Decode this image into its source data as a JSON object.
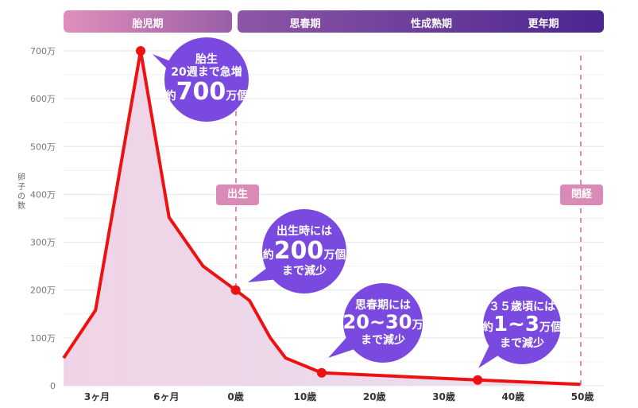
{
  "chart_data": {
    "type": "area",
    "title": "",
    "ylabel": "卵子の数",
    "ylim": [
      0,
      700
    ],
    "yunit": "万",
    "yticks": [
      {
        "v": 0,
        "label": "0"
      },
      {
        "v": 100,
        "label": "100万"
      },
      {
        "v": 200,
        "label": "200万"
      },
      {
        "v": 300,
        "label": "300万"
      },
      {
        "v": 400,
        "label": "400万"
      },
      {
        "v": 500,
        "label": "500万"
      },
      {
        "v": 600,
        "label": "600万"
      },
      {
        "v": 700,
        "label": "700万"
      }
    ],
    "xticks": [
      {
        "t": 0,
        "label": "3ヶ月"
      },
      {
        "t": 1,
        "label": "6ヶ月"
      },
      {
        "t": 2,
        "label": "0歳"
      },
      {
        "t": 3,
        "label": "10歳"
      },
      {
        "t": 4,
        "label": "20歳"
      },
      {
        "t": 5,
        "label": "30歳"
      },
      {
        "t": 6,
        "label": "40歳"
      },
      {
        "t": 7,
        "label": "50歳"
      }
    ],
    "xlim": [
      -0.48,
      7.1
    ],
    "series": [
      {
        "name": "卵子の数",
        "color": "#ee1111",
        "points": [
          [
            -0.48,
            58
          ],
          [
            -0.02,
            158
          ],
          [
            0.63,
            700
          ],
          [
            1.04,
            352
          ],
          [
            1.53,
            250
          ],
          [
            2,
            200
          ],
          [
            2.2,
            178
          ],
          [
            2.5,
            100
          ],
          [
            2.72,
            58
          ],
          [
            3.24,
            27
          ],
          [
            5.49,
            12
          ],
          [
            6.97,
            3
          ]
        ]
      }
    ],
    "highlight_points": [
      [
        0.63,
        700
      ],
      [
        2,
        200
      ],
      [
        3.24,
        27
      ],
      [
        5.49,
        12
      ],
      [
        6.97,
        3
      ]
    ],
    "grid": true
  },
  "phases": [
    {
      "label": "胎児期"
    },
    {
      "labels": [
        "思春期",
        "性成熟期",
        "更年期"
      ]
    }
  ],
  "markers": {
    "birth": "出生",
    "menopause": "閉経"
  },
  "callouts": [
    {
      "l1": "胎生",
      "l2": "20週まで急増",
      "pre": "約",
      "big": "700",
      "post": "万個"
    },
    {
      "l1": "出生時には",
      "pre": "約",
      "big": "200",
      "post": "万個",
      "l3": "まで減少"
    },
    {
      "l1": "思春期には",
      "pre": "約",
      "big": "20~30",
      "post": "万個",
      "l3": "まで減少"
    },
    {
      "l1": "３５歳頃には",
      "pre": "約",
      "big": "1~3",
      "post": "万個",
      "l3": "まで減少"
    }
  ]
}
